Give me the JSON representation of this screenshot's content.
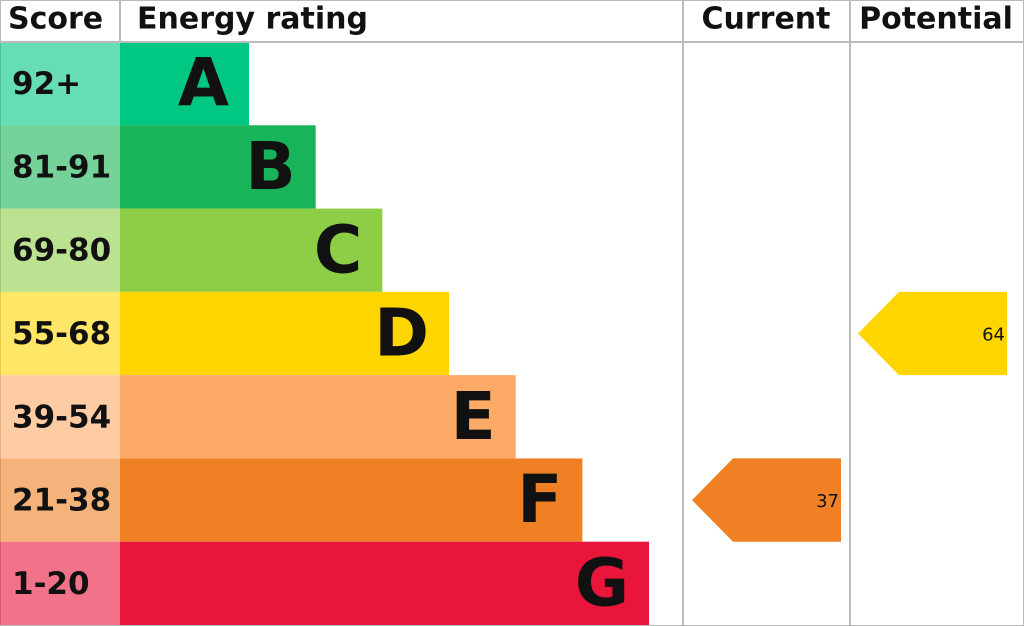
{
  "chart_data": {
    "type": "epc",
    "columns": [
      "Score",
      "Energy rating",
      "Current",
      "Potential"
    ],
    "bands": [
      {
        "score": "92+",
        "letter": "A",
        "color": "#00c781"
      },
      {
        "score": "81-91",
        "letter": "B",
        "color": "#19b459"
      },
      {
        "score": "69-80",
        "letter": "C",
        "color": "#8dce46"
      },
      {
        "score": "55-68",
        "letter": "D",
        "color": "#ffd500"
      },
      {
        "score": "39-54",
        "letter": "E",
        "color": "#fcaa65"
      },
      {
        "score": "21-38",
        "letter": "F",
        "color": "#ef8023"
      },
      {
        "score": "1-20",
        "letter": "G",
        "color": "#e9153b"
      }
    ],
    "current": 37,
    "potential": 64
  }
}
